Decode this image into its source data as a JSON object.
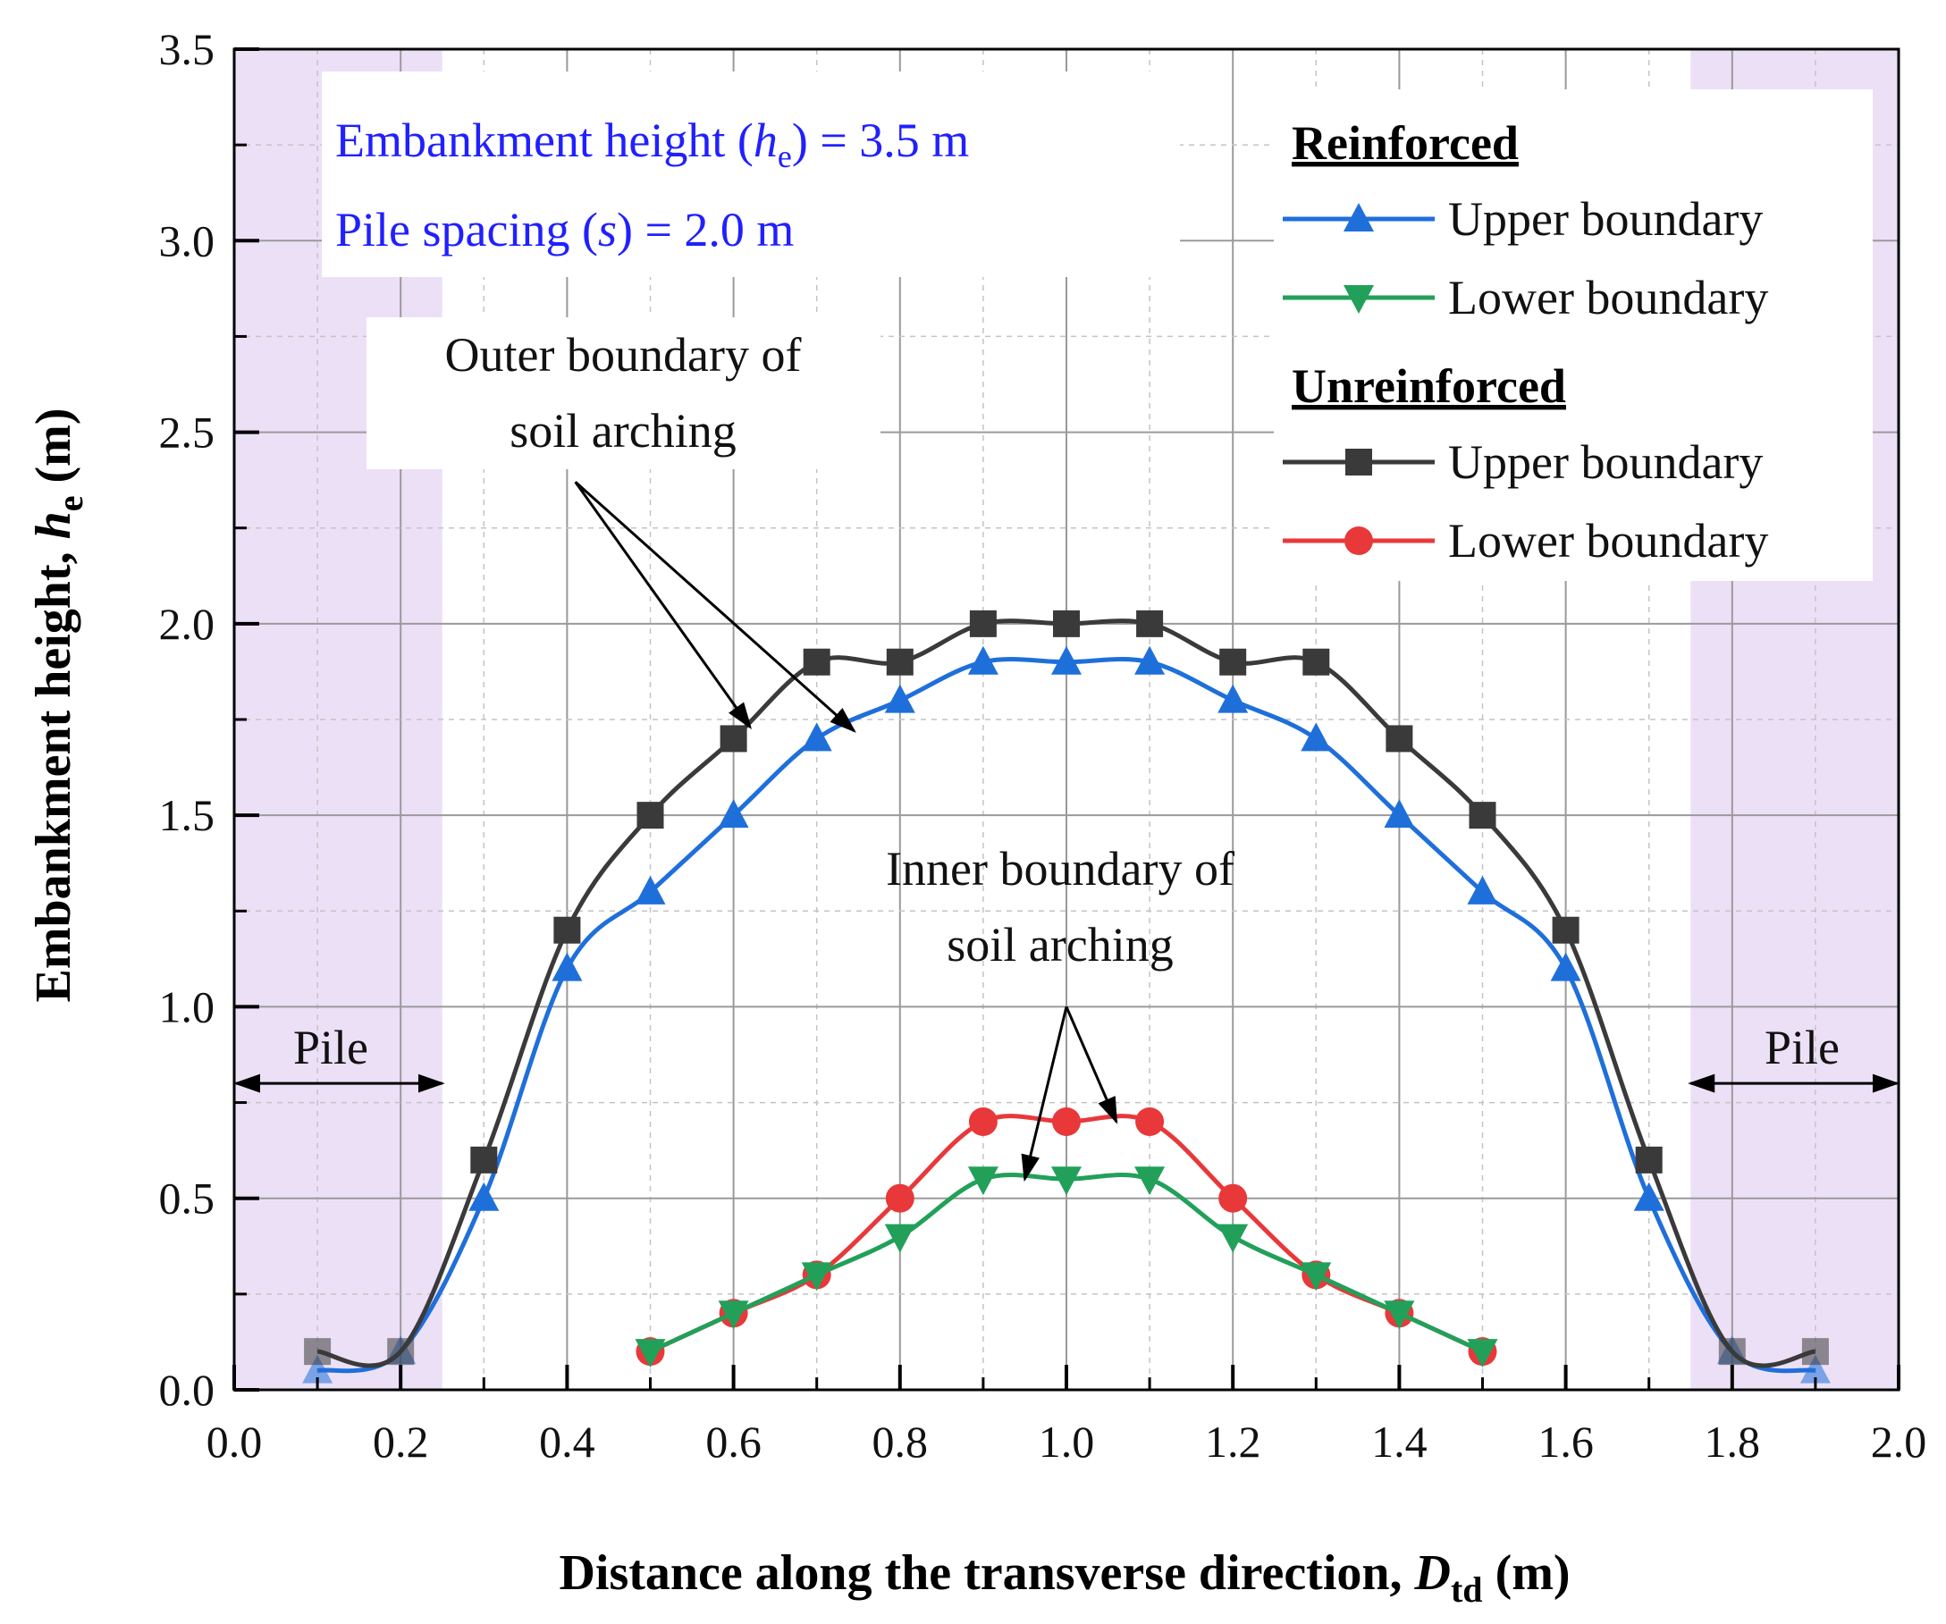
{
  "chart_data": {
    "type": "line",
    "xlabel": {
      "main": "Distance along the transverse direction, ",
      "sym": "D",
      "sub": "td",
      "unit": " (m)"
    },
    "ylabel": {
      "main": "Embankment height, ",
      "sym": "h",
      "sub": "e",
      "unit": " (m)"
    },
    "xlim": [
      0.0,
      2.0
    ],
    "ylim": [
      0.0,
      3.5
    ],
    "xticks": [
      "0.0",
      "0.2",
      "0.4",
      "0.6",
      "0.8",
      "1.0",
      "1.2",
      "1.4",
      "1.6",
      "1.8",
      "2.0"
    ],
    "yticks": [
      "0.0",
      "0.5",
      "1.0",
      "1.5",
      "2.0",
      "2.5",
      "3.0",
      "3.5"
    ],
    "grid": true,
    "pile_zones": [
      [
        0.0,
        0.25
      ],
      [
        1.75,
        2.0
      ]
    ],
    "pile_label": "Pile",
    "info": {
      "line1": {
        "pre": "Embankment height (",
        "sym": "h",
        "sub": "e",
        "post": ") = 3.5 m"
      },
      "line2": {
        "pre": "Pile spacing (",
        "sym": "s",
        "post": ") = 2.0 m"
      }
    },
    "annotations": {
      "outer": [
        "Outer boundary of",
        "soil arching"
      ],
      "inner": [
        "Inner boundary of",
        "soil arching"
      ]
    },
    "legend": {
      "placement": "top-right",
      "groups": [
        {
          "title": "Reinforced",
          "items": [
            0,
            1
          ]
        },
        {
          "title": "Unreinforced",
          "items": [
            2,
            3
          ]
        }
      ]
    },
    "series": [
      {
        "name": "Upper boundary",
        "group": "Reinforced",
        "color": "#1f6fdb",
        "marker": "triangle-up",
        "x": [
          0.1,
          0.2,
          0.3,
          0.4,
          0.5,
          0.6,
          0.7,
          0.8,
          0.9,
          1.0,
          1.1,
          1.2,
          1.3,
          1.4,
          1.5,
          1.6,
          1.7,
          1.8,
          1.9
        ],
        "y": [
          0.05,
          0.1,
          0.5,
          1.1,
          1.3,
          1.5,
          1.7,
          1.8,
          1.9,
          1.9,
          1.9,
          1.8,
          1.7,
          1.5,
          1.3,
          1.1,
          0.5,
          0.1,
          0.05
        ]
      },
      {
        "name": "Lower boundary",
        "group": "Reinforced",
        "color": "#22a05a",
        "marker": "triangle-down",
        "x": [
          0.5,
          0.6,
          0.7,
          0.8,
          0.9,
          1.0,
          1.1,
          1.2,
          1.3,
          1.4,
          1.5
        ],
        "y": [
          0.1,
          0.2,
          0.3,
          0.4,
          0.55,
          0.55,
          0.55,
          0.4,
          0.3,
          0.2,
          0.1
        ]
      },
      {
        "name": "Upper boundary",
        "group": "Unreinforced",
        "color": "#3a3a3a",
        "marker": "square",
        "x": [
          0.1,
          0.2,
          0.3,
          0.4,
          0.5,
          0.6,
          0.7,
          0.8,
          0.9,
          1.0,
          1.1,
          1.2,
          1.3,
          1.4,
          1.5,
          1.6,
          1.7,
          1.8,
          1.9
        ],
        "y": [
          0.1,
          0.1,
          0.6,
          1.2,
          1.5,
          1.7,
          1.9,
          1.9,
          2.0,
          2.0,
          2.0,
          1.9,
          1.9,
          1.7,
          1.5,
          1.2,
          0.6,
          0.1,
          0.1
        ]
      },
      {
        "name": "Lower boundary",
        "group": "Unreinforced",
        "color": "#e8383a",
        "marker": "circle",
        "x": [
          0.5,
          0.6,
          0.7,
          0.8,
          0.9,
          1.0,
          1.1,
          1.2,
          1.3,
          1.4,
          1.5
        ],
        "y": [
          0.1,
          0.2,
          0.3,
          0.5,
          0.7,
          0.7,
          0.7,
          0.5,
          0.3,
          0.2,
          0.1
        ]
      }
    ]
  }
}
